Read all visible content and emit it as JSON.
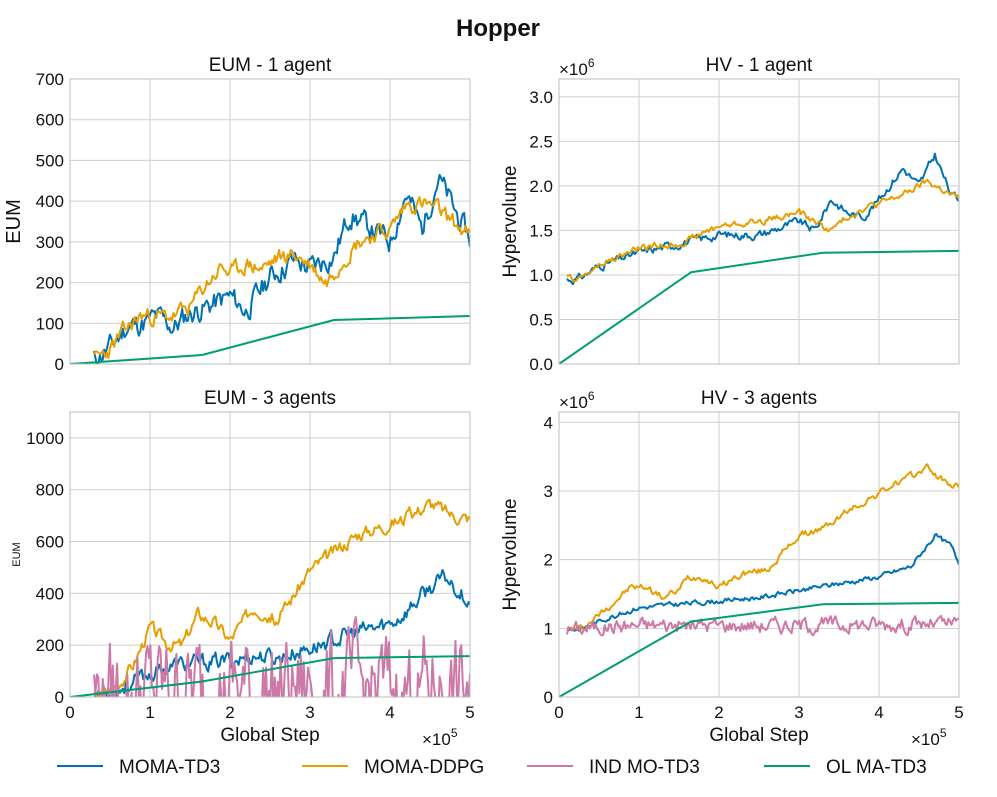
{
  "figure": {
    "suptitle": "Hopper",
    "legend": [
      {
        "name": "MOMA-TD3",
        "color": "#0072B2"
      },
      {
        "name": "MOMA-DDPG",
        "color": "#E69F00"
      },
      {
        "name": "IND MO-TD3",
        "color": "#CC79A7"
      },
      {
        "name": "OL MA-TD3",
        "color": "#009E73"
      }
    ],
    "multiplier_text": "×10",
    "x_exponent": "5",
    "y_exponent": "6"
  },
  "chart_data": [
    {
      "type": "line",
      "title": "EUM - 1 agent",
      "xlabel": "",
      "ylabel": "EUM",
      "xlim": [
        0,
        5
      ],
      "ylim": [
        0,
        700
      ],
      "xticks": [
        0,
        1,
        2,
        3,
        4,
        5
      ],
      "yticks": [
        0,
        100,
        200,
        300,
        400,
        500,
        600,
        700
      ],
      "ytick_labels": [
        "0",
        "100",
        "200",
        "300",
        "400",
        "500",
        "600",
        "700"
      ],
      "x_unit": "×10^5 (shown on bottom row)",
      "series": [
        {
          "name": "MOMA-TD3",
          "color": "#0072B2",
          "noise": 0.07,
          "seed": 11,
          "x": [
            0.3,
            0.5,
            0.7,
            0.9,
            1.1,
            1.3,
            1.5,
            1.7,
            2.0,
            2.2,
            2.5,
            2.8,
            3.0,
            3.3,
            3.5,
            3.7,
            4.0,
            4.2,
            4.4,
            4.6,
            4.8,
            5.0
          ],
          "y": [
            12,
            40,
            90,
            100,
            115,
            90,
            125,
            140,
            165,
            130,
            215,
            255,
            235,
            265,
            370,
            340,
            300,
            420,
            330,
            460,
            380,
            305
          ]
        },
        {
          "name": "MOMA-DDPG",
          "color": "#E69F00",
          "noise": 0.05,
          "seed": 23,
          "x": [
            0.3,
            0.5,
            0.7,
            0.9,
            1.1,
            1.3,
            1.5,
            1.7,
            1.9,
            2.0,
            2.2,
            2.4,
            2.6,
            2.8,
            3.0,
            3.2,
            3.4,
            3.6,
            3.8,
            4.0,
            4.2,
            4.4,
            4.6,
            4.8,
            5.0
          ],
          "y": [
            8,
            35,
            85,
            120,
            115,
            118,
            140,
            195,
            240,
            220,
            245,
            235,
            260,
            270,
            245,
            200,
            255,
            300,
            320,
            330,
            390,
            395,
            380,
            345,
            315
          ]
        },
        {
          "name": "OL MA-TD3",
          "color": "#009E73",
          "noise": 0,
          "seed": 0,
          "x": [
            0,
            1.65,
            3.3,
            5.0
          ],
          "y": [
            0,
            22,
            108,
            118
          ]
        }
      ]
    },
    {
      "type": "line",
      "title": "HV - 1 agent",
      "xlabel": "",
      "ylabel": "Hypervolume",
      "xlim": [
        0,
        5
      ],
      "ylim": [
        0,
        3.2
      ],
      "xticks": [
        0,
        1,
        2,
        3,
        4,
        5
      ],
      "yticks": [
        0,
        0.5,
        1.0,
        1.5,
        2.0,
        2.5,
        3.0
      ],
      "ytick_labels": [
        "0.0",
        "0.5",
        "1.0",
        "1.5",
        "2.0",
        "2.5",
        "3.0"
      ],
      "y_unit": "×10^6",
      "series": [
        {
          "name": "MOMA-TD3",
          "color": "#0072B2",
          "noise": 0.025,
          "seed": 31,
          "x": [
            0.1,
            0.25,
            0.5,
            1.0,
            1.5,
            2.0,
            2.5,
            3.0,
            3.2,
            3.4,
            3.6,
            3.8,
            4.0,
            4.3,
            4.5,
            4.7,
            4.9,
            5.0
          ],
          "y": [
            0.95,
            0.96,
            1.1,
            1.25,
            1.35,
            1.45,
            1.45,
            1.6,
            1.5,
            1.85,
            1.7,
            1.65,
            1.85,
            2.2,
            2.0,
            2.35,
            1.9,
            1.85
          ]
        },
        {
          "name": "MOMA-DDPG",
          "color": "#E69F00",
          "noise": 0.02,
          "seed": 47,
          "x": [
            0.1,
            0.25,
            0.5,
            1.0,
            1.5,
            2.0,
            2.5,
            3.0,
            3.4,
            3.6,
            3.8,
            4.0,
            4.3,
            4.6,
            4.8,
            5.0
          ],
          "y": [
            0.95,
            0.96,
            1.1,
            1.3,
            1.35,
            1.55,
            1.6,
            1.7,
            1.5,
            1.65,
            1.75,
            1.8,
            1.9,
            2.05,
            1.95,
            1.85
          ]
        },
        {
          "name": "OL MA-TD3",
          "color": "#009E73",
          "noise": 0,
          "seed": 0,
          "x": [
            0,
            1.65,
            3.3,
            5.0
          ],
          "y": [
            0,
            1.03,
            1.25,
            1.27
          ]
        }
      ]
    },
    {
      "type": "line",
      "title": "EUM - 3 agents",
      "xlabel": "Global Step",
      "ylabel": "EUM",
      "xlim": [
        0,
        5
      ],
      "ylim": [
        0,
        1100
      ],
      "xticks": [
        0,
        1,
        2,
        3,
        4,
        5
      ],
      "yticks": [
        0,
        200,
        400,
        600,
        800,
        1000
      ],
      "ytick_labels": [
        "0",
        "200",
        "400",
        "600",
        "800",
        "1000"
      ],
      "x_unit": "×10^5",
      "series": [
        {
          "name": "MOMA-TD3",
          "color": "#0072B2",
          "noise": 0.05,
          "seed": 53,
          "x": [
            0.3,
            0.6,
            1.0,
            1.3,
            1.6,
            2.0,
            2.3,
            2.6,
            3.0,
            3.3,
            3.6,
            4.0,
            4.2,
            4.5,
            4.7,
            5.0
          ],
          "y": [
            5,
            30,
            90,
            120,
            130,
            140,
            160,
            150,
            190,
            220,
            250,
            280,
            330,
            420,
            460,
            370
          ]
        },
        {
          "name": "MOMA-DDPG",
          "color": "#E69F00",
          "noise": 0.04,
          "seed": 67,
          "x": [
            0.3,
            0.6,
            0.8,
            1.0,
            1.2,
            1.4,
            1.6,
            1.8,
            2.0,
            2.3,
            2.6,
            3.0,
            3.3,
            3.6,
            3.9,
            4.2,
            4.5,
            4.8,
            5.0
          ],
          "y": [
            0,
            50,
            130,
            270,
            210,
            200,
            320,
            290,
            220,
            350,
            300,
            490,
            560,
            630,
            660,
            690,
            750,
            700,
            690
          ]
        },
        {
          "name": "IND MO-TD3",
          "color": "#CC79A7",
          "noise": 0.3,
          "seed": 79,
          "x": [
            0.3,
            0.6,
            1.0,
            2.0,
            3.0,
            4.0,
            5.0
          ],
          "y": [
            5,
            25,
            30,
            32,
            32,
            33,
            33
          ]
        },
        {
          "name": "OL MA-TD3",
          "color": "#009E73",
          "noise": 0,
          "seed": 0,
          "x": [
            0,
            1.65,
            3.3,
            5.0
          ],
          "y": [
            0,
            60,
            150,
            158
          ]
        }
      ]
    },
    {
      "type": "line",
      "title": "HV - 3 agents",
      "xlabel": "Global Step",
      "ylabel": "Hypervolume",
      "xlim": [
        0,
        5
      ],
      "ylim": [
        0,
        4.15
      ],
      "xticks": [
        0,
        1,
        2,
        3,
        4,
        5
      ],
      "yticks": [
        0,
        1,
        2,
        3,
        4
      ],
      "ytick_labels": [
        "0",
        "1",
        "2",
        "3",
        "4"
      ],
      "x_unit": "×10^5",
      "y_unit": "×10^6",
      "series": [
        {
          "name": "MOMA-TD3",
          "color": "#0072B2",
          "noise": 0.015,
          "seed": 83,
          "x": [
            0.1,
            0.3,
            0.6,
            1.0,
            1.5,
            2.0,
            2.5,
            3.0,
            3.5,
            4.0,
            4.4,
            4.7,
            4.9,
            5.0
          ],
          "y": [
            0.98,
            1.0,
            1.15,
            1.3,
            1.35,
            1.4,
            1.45,
            1.55,
            1.65,
            1.75,
            1.9,
            2.35,
            2.2,
            1.95
          ]
        },
        {
          "name": "MOMA-DDPG",
          "color": "#E69F00",
          "noise": 0.02,
          "seed": 97,
          "x": [
            0.1,
            0.3,
            0.6,
            0.9,
            1.1,
            1.3,
            1.5,
            1.6,
            1.8,
            2.0,
            2.3,
            2.6,
            3.0,
            3.3,
            3.6,
            3.9,
            4.2,
            4.4,
            4.6,
            4.8,
            5.0
          ],
          "y": [
            0.98,
            1.0,
            1.3,
            1.6,
            1.6,
            1.45,
            1.55,
            1.75,
            1.75,
            1.6,
            1.8,
            1.85,
            2.35,
            2.45,
            2.7,
            2.9,
            3.1,
            3.2,
            3.35,
            3.15,
            3.05
          ]
        },
        {
          "name": "IND MO-TD3",
          "color": "#CC79A7",
          "noise": 0.045,
          "seed": 101,
          "x": [
            0.1,
            0.5,
            1.0,
            2.0,
            3.0,
            4.0,
            5.0
          ],
          "y": [
            0.98,
            1.02,
            1.05,
            1.05,
            1.05,
            1.06,
            1.06
          ]
        },
        {
          "name": "OL MA-TD3",
          "color": "#009E73",
          "noise": 0,
          "seed": 0,
          "x": [
            0,
            1.65,
            3.3,
            5.0
          ],
          "y": [
            0,
            1.1,
            1.35,
            1.37
          ]
        }
      ]
    }
  ]
}
